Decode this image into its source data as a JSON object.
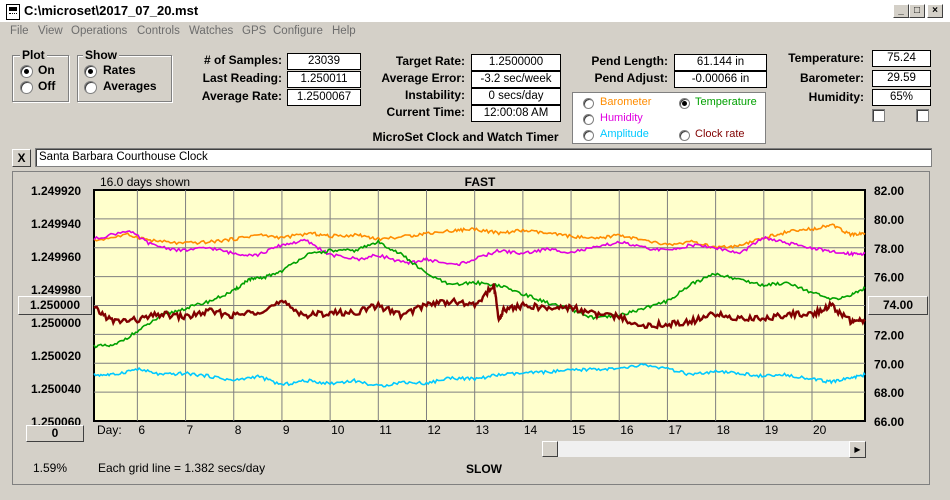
{
  "window": {
    "title": "C:\\microset\\2017_07_20.mst",
    "buttons": {
      "minimize": "_",
      "maximize": "□",
      "close": "×"
    }
  },
  "menu": [
    "File",
    "View",
    "Operations",
    "Controls",
    "Watches",
    "GPS",
    "Configure",
    "Help"
  ],
  "plot_group": {
    "label": "Plot",
    "on": "On",
    "off": "Off",
    "selected": "On"
  },
  "show_group": {
    "label": "Show",
    "rates": "Rates",
    "averages": "Averages",
    "selected": "Rates"
  },
  "stats": {
    "samples_label": "# of Samples:",
    "samples": "23039",
    "last_reading_label": "Last Reading:",
    "last_reading": "1.250011",
    "average_rate_label": "Average Rate:",
    "average_rate": "1.2500067",
    "target_rate_label": "Target Rate:",
    "target_rate": "1.2500000",
    "average_error_label": "Average Error:",
    "average_error": "-3.2 sec/week",
    "instability_label": "Instability:",
    "instability": "0 secs/day",
    "current_time_label": "Current Time:",
    "current_time": "12:00:08 AM",
    "app_caption": "MicroSet Clock and Watch Timer",
    "pend_length_label": "Pend Length:",
    "pend_length": "61.144 in",
    "pend_adjust_label": "Pend Adjust:",
    "pend_adjust": "-0.00066 in",
    "temperature_label": "Temperature:",
    "temperature": "75.24",
    "barometer_label": "Barometer:",
    "barometer": "29.59",
    "humidity_label": "Humidity:",
    "humidity": "65%"
  },
  "sensor_select": {
    "barometer": "Barometer",
    "temperature": "Temperature",
    "humidity": "Humidity",
    "amplitude": "Amplitude",
    "clock_rate": "Clock rate",
    "selected": "Temperature",
    "colors": {
      "barometer": "#ff8c00",
      "temperature": "#00a000",
      "humidity": "#e000e0",
      "amplitude": "#00c8ff",
      "clock_rate": "#800000"
    }
  },
  "clock_name": "Santa Barbara Courthouse Clock",
  "close_button": "X",
  "chart_labels": {
    "days_shown": "16.0 days shown",
    "fast": "FAST",
    "slow": "SLOW",
    "grid_note": "Each grid line = 1.382 secs/day",
    "day_label": "Day:",
    "left_button": "1.250000",
    "right_button": "74.00",
    "bottom_button": "0",
    "percent": "1.59%"
  },
  "chart_data": {
    "type": "line",
    "x_label": "Day:",
    "x_ticks": [
      "6",
      "7",
      "8",
      "9",
      "10",
      "11",
      "12",
      "13",
      "14",
      "15",
      "16",
      "17",
      "18",
      "19",
      "20"
    ],
    "x_range": [
      5.1,
      21.1
    ],
    "y_left_ticks": [
      "1.249920",
      "1.249940",
      "1.249960",
      "1.249980",
      "1.250000",
      "1.250020",
      "1.250040",
      "1.250060"
    ],
    "y_left_range": [
      1.24992,
      1.25008
    ],
    "y_left_inverted": true,
    "y_right_ticks": [
      "82.00",
      "80.00",
      "78.00",
      "76.00",
      "74.00",
      "72.00",
      "70.00",
      "68.00",
      "66.00"
    ],
    "y_right_range": [
      66,
      82
    ],
    "grid": true,
    "series": [
      {
        "name": "Barometer",
        "axis": "right",
        "color": "#ff8c00",
        "points": [
          [
            5.1,
            78.5
          ],
          [
            5.8,
            78.9
          ],
          [
            6.3,
            78.5
          ],
          [
            6.9,
            78.3
          ],
          [
            7.5,
            78.4
          ],
          [
            8.0,
            78.6
          ],
          [
            8.5,
            78.9
          ],
          [
            9.0,
            78.7
          ],
          [
            9.6,
            79.0
          ],
          [
            10.0,
            78.8
          ],
          [
            10.6,
            78.9
          ],
          [
            11.0,
            78.6
          ],
          [
            11.6,
            78.8
          ],
          [
            12.0,
            79.0
          ],
          [
            12.6,
            79.2
          ],
          [
            13.0,
            79.3
          ],
          [
            13.5,
            79.0
          ],
          [
            14.0,
            79.2
          ],
          [
            14.5,
            79.0
          ],
          [
            15.0,
            78.8
          ],
          [
            15.5,
            78.6
          ],
          [
            16.0,
            78.9
          ],
          [
            16.5,
            78.5
          ],
          [
            17.0,
            78.2
          ],
          [
            17.5,
            78.4
          ],
          [
            18.0,
            78.0
          ],
          [
            18.5,
            78.1
          ],
          [
            19.0,
            78.7
          ],
          [
            19.5,
            79.1
          ],
          [
            20.0,
            79.3
          ],
          [
            20.4,
            79.6
          ],
          [
            20.8,
            78.9
          ],
          [
            21.1,
            79.0
          ]
        ]
      },
      {
        "name": "Humidity",
        "axis": "right",
        "color": "#e000e0",
        "points": [
          [
            5.1,
            78.6
          ],
          [
            5.8,
            79.2
          ],
          [
            6.3,
            78.2
          ],
          [
            6.9,
            77.8
          ],
          [
            7.5,
            78.0
          ],
          [
            8.0,
            77.6
          ],
          [
            8.5,
            77.5
          ],
          [
            9.0,
            78.2
          ],
          [
            9.5,
            78.5
          ],
          [
            10.0,
            77.5
          ],
          [
            10.6,
            77.2
          ],
          [
            11.0,
            77.5
          ],
          [
            11.6,
            76.9
          ],
          [
            12.0,
            77.2
          ],
          [
            12.6,
            76.8
          ],
          [
            13.0,
            77.2
          ],
          [
            13.5,
            77.8
          ],
          [
            14.0,
            77.6
          ],
          [
            14.5,
            77.9
          ],
          [
            15.0,
            77.7
          ],
          [
            15.5,
            78.0
          ],
          [
            16.0,
            78.4
          ],
          [
            16.5,
            78.0
          ],
          [
            17.0,
            77.8
          ],
          [
            17.5,
            78.2
          ],
          [
            18.0,
            78.0
          ],
          [
            18.5,
            77.6
          ],
          [
            19.0,
            78.7
          ],
          [
            19.5,
            78.3
          ],
          [
            20.0,
            78.0
          ],
          [
            20.4,
            77.7
          ],
          [
            20.8,
            77.6
          ],
          [
            21.1,
            77.6
          ]
        ]
      },
      {
        "name": "Temperature",
        "axis": "right",
        "color": "#00a000",
        "points": [
          [
            5.1,
            71.2
          ],
          [
            5.5,
            71.2
          ],
          [
            6.0,
            72.2
          ],
          [
            6.5,
            73.3
          ],
          [
            7.0,
            73.8
          ],
          [
            7.5,
            74.3
          ],
          [
            8.0,
            75.0
          ],
          [
            8.3,
            75.8
          ],
          [
            8.6,
            75.9
          ],
          [
            9.0,
            76.4
          ],
          [
            9.5,
            77.5
          ],
          [
            10.0,
            77.8
          ],
          [
            10.5,
            77.8
          ],
          [
            11.0,
            78.4
          ],
          [
            11.5,
            77.5
          ],
          [
            12.0,
            76.2
          ],
          [
            12.5,
            75.4
          ],
          [
            13.0,
            75.6
          ],
          [
            13.5,
            75.4
          ],
          [
            14.0,
            74.8
          ],
          [
            14.5,
            74.2
          ],
          [
            15.0,
            73.7
          ],
          [
            15.5,
            73.1
          ],
          [
            16.0,
            73.3
          ],
          [
            16.5,
            73.8
          ],
          [
            17.0,
            74.3
          ],
          [
            17.5,
            75.5
          ],
          [
            18.0,
            76.2
          ],
          [
            18.5,
            75.8
          ],
          [
            19.0,
            75.4
          ],
          [
            19.5,
            75.6
          ],
          [
            20.0,
            74.9
          ],
          [
            20.4,
            74.4
          ],
          [
            20.8,
            74.7
          ],
          [
            21.1,
            75.2
          ]
        ]
      },
      {
        "name": "Clock rate",
        "axis": "right",
        "color": "#800000",
        "points": [
          [
            5.1,
            73.8
          ],
          [
            5.5,
            72.9
          ],
          [
            6.0,
            73.0
          ],
          [
            6.5,
            73.4
          ],
          [
            7.0,
            73.2
          ],
          [
            7.5,
            73.6
          ],
          [
            8.0,
            73.3
          ],
          [
            8.5,
            73.6
          ],
          [
            9.0,
            74.2
          ],
          [
            9.5,
            73.3
          ],
          [
            10.0,
            73.5
          ],
          [
            10.5,
            73.5
          ],
          [
            11.0,
            74.0
          ],
          [
            11.5,
            73.3
          ],
          [
            12.0,
            74.1
          ],
          [
            12.5,
            74.3
          ],
          [
            13.0,
            74.0
          ],
          [
            13.4,
            75.4
          ],
          [
            13.5,
            73.0
          ],
          [
            13.6,
            73.7
          ],
          [
            14.0,
            74.0
          ],
          [
            14.5,
            73.8
          ],
          [
            15.0,
            73.9
          ],
          [
            15.5,
            73.4
          ],
          [
            16.0,
            73.2
          ],
          [
            16.5,
            72.6
          ],
          [
            17.0,
            72.7
          ],
          [
            17.5,
            72.9
          ],
          [
            18.0,
            73.4
          ],
          [
            18.5,
            73.1
          ],
          [
            19.0,
            73.1
          ],
          [
            19.5,
            73.4
          ],
          [
            20.0,
            73.4
          ],
          [
            20.4,
            74.0
          ],
          [
            20.8,
            72.9
          ],
          [
            21.1,
            72.9
          ]
        ]
      },
      {
        "name": "Amplitude",
        "axis": "right",
        "color": "#00c8ff",
        "points": [
          [
            5.1,
            69.2
          ],
          [
            5.5,
            69.2
          ],
          [
            6.0,
            69.6
          ],
          [
            6.5,
            69.2
          ],
          [
            7.0,
            69.3
          ],
          [
            7.5,
            69.1
          ],
          [
            8.0,
            68.8
          ],
          [
            8.5,
            69.1
          ],
          [
            9.0,
            68.5
          ],
          [
            9.5,
            68.8
          ],
          [
            10.0,
            68.6
          ],
          [
            10.5,
            68.8
          ],
          [
            11.0,
            68.4
          ],
          [
            11.5,
            68.7
          ],
          [
            12.0,
            68.6
          ],
          [
            12.5,
            69.0
          ],
          [
            13.0,
            68.9
          ],
          [
            13.5,
            69.2
          ],
          [
            14.0,
            69.3
          ],
          [
            14.5,
            69.4
          ],
          [
            15.0,
            69.5
          ],
          [
            15.5,
            69.6
          ],
          [
            16.0,
            69.6
          ],
          [
            16.5,
            69.9
          ],
          [
            17.0,
            69.6
          ],
          [
            17.5,
            69.2
          ],
          [
            18.0,
            69.4
          ],
          [
            18.5,
            69.3
          ],
          [
            19.0,
            69.1
          ],
          [
            19.5,
            69.2
          ],
          [
            20.0,
            68.9
          ],
          [
            20.4,
            68.7
          ],
          [
            20.8,
            69.0
          ],
          [
            21.1,
            69.2
          ]
        ]
      }
    ]
  }
}
